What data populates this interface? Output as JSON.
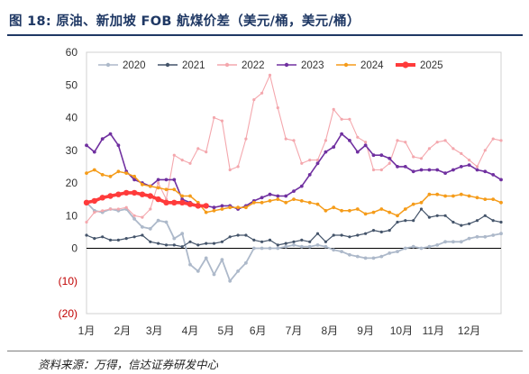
{
  "figure": {
    "title": "图 18:  原油、新加坡 FOB 航煤价差（美元/桶，美元/桶）",
    "source": "资料来源：万得，信达证券研发中心"
  },
  "chart_data": {
    "type": "line",
    "ylim": [
      -20,
      60
    ],
    "yticks": [
      {
        "v": 60,
        "label": "60"
      },
      {
        "v": 50,
        "label": "50"
      },
      {
        "v": 40,
        "label": "40"
      },
      {
        "v": 30,
        "label": "30"
      },
      {
        "v": 20,
        "label": "20"
      },
      {
        "v": 10,
        "label": "10"
      },
      {
        "v": 0,
        "label": "0"
      },
      {
        "v": -10,
        "label": "(10)"
      },
      {
        "v": -20,
        "label": "(20)"
      }
    ],
    "xlim": [
      1,
      53
    ],
    "xticks": [
      {
        "v": 1,
        "label": "1月"
      },
      {
        "v": 5.5,
        "label": "2月"
      },
      {
        "v": 9.5,
        "label": "3月"
      },
      {
        "v": 14,
        "label": "4月"
      },
      {
        "v": 18.5,
        "label": "5月"
      },
      {
        "v": 22.5,
        "label": "6月"
      },
      {
        "v": 27,
        "label": "7月"
      },
      {
        "v": 31.5,
        "label": "8月"
      },
      {
        "v": 36,
        "label": "9月"
      },
      {
        "v": 40.5,
        "label": "10月"
      },
      {
        "v": 44.5,
        "label": "11月"
      },
      {
        "v": 49,
        "label": "12月"
      }
    ],
    "legend_position": "top",
    "series": [
      {
        "name": "2020",
        "color": "#adb9ca",
        "width": 1.8,
        "marker": "circle",
        "x": [
          1,
          2,
          3,
          4,
          5,
          6,
          7,
          8,
          9,
          10,
          11,
          12,
          13,
          14,
          15,
          16,
          17,
          18,
          19,
          20,
          21,
          22,
          23,
          24,
          25,
          26,
          27,
          28,
          29,
          30,
          31,
          32,
          33,
          34,
          35,
          36,
          37,
          38,
          39,
          40,
          41,
          42,
          43,
          44,
          45,
          46,
          47,
          48,
          49,
          50,
          51,
          52,
          53
        ],
        "values": [
          14,
          11.5,
          11,
          12,
          11.5,
          12,
          9,
          6.5,
          6,
          8.5,
          8,
          3,
          4.5,
          -5,
          -7,
          -3,
          -8,
          -3.5,
          -10,
          -7,
          -4.5,
          0,
          0,
          0,
          0,
          0.5,
          1,
          0.5,
          0.5,
          1,
          0.5,
          -0.5,
          -1,
          -2,
          -2.5,
          -3,
          -3,
          -2.5,
          -1.5,
          -1,
          0,
          0.5,
          0,
          0.5,
          1,
          2,
          2,
          2,
          3,
          3.5,
          3.5,
          4,
          4.5
        ]
      },
      {
        "name": "2021",
        "color": "#44546a",
        "width": 1.2,
        "marker": "circle",
        "x": [
          1,
          2,
          3,
          4,
          5,
          6,
          7,
          8,
          9,
          10,
          11,
          12,
          13,
          14,
          15,
          16,
          17,
          18,
          19,
          20,
          21,
          22,
          23,
          24,
          25,
          26,
          27,
          28,
          29,
          30,
          31,
          32,
          33,
          34,
          35,
          36,
          37,
          38,
          39,
          40,
          41,
          42,
          43,
          44,
          45,
          46,
          47,
          48,
          49,
          50,
          51,
          52,
          53
        ],
        "values": [
          4,
          3,
          3.5,
          2.5,
          2.5,
          3,
          3.5,
          4,
          2,
          1.5,
          1,
          1,
          0.5,
          2,
          1,
          1.5,
          1.5,
          2,
          3.5,
          4,
          4,
          2.5,
          2,
          2.5,
          1,
          1.5,
          2,
          2.5,
          2,
          4.5,
          2,
          4,
          4,
          3.5,
          4,
          4.5,
          5.5,
          5,
          5.5,
          8,
          8.5,
          8.5,
          12,
          9.5,
          10,
          10,
          8,
          7,
          7.5,
          8.5,
          10,
          8.5,
          8
        ]
      },
      {
        "name": "2022",
        "color": "#f4a7ad",
        "width": 1.1,
        "marker": "circle",
        "x": [
          1,
          2,
          3,
          4,
          5,
          6,
          7,
          8,
          9,
          10,
          11,
          12,
          13,
          14,
          15,
          16,
          17,
          18,
          19,
          20,
          21,
          22,
          23,
          24,
          25,
          26,
          27,
          28,
          29,
          30,
          31,
          32,
          33,
          34,
          35,
          36,
          37,
          38,
          39,
          40,
          41,
          42,
          43,
          44,
          45,
          46,
          47,
          48,
          49,
          50,
          51,
          52,
          53
        ],
        "values": [
          8,
          11,
          11.5,
          12,
          12,
          12.5,
          10,
          9.5,
          12,
          20,
          15,
          28.5,
          27,
          26,
          30.5,
          29.5,
          40,
          39,
          24,
          25,
          33.5,
          45.5,
          47.5,
          53,
          43,
          33.5,
          33,
          26,
          27,
          27,
          33,
          42.5,
          39.5,
          39.5,
          34,
          32.5,
          24,
          24,
          26,
          33,
          32.5,
          28,
          27.5,
          30.5,
          32.5,
          33,
          30.5,
          29,
          27,
          25,
          30,
          33.5,
          33
        ]
      },
      {
        "name": "2023",
        "color": "#7030a0",
        "width": 1.6,
        "marker": "circle",
        "x": [
          1,
          2,
          3,
          4,
          5,
          6,
          7,
          8,
          9,
          10,
          11,
          12,
          13,
          14,
          15,
          16,
          17,
          18,
          19,
          20,
          21,
          22,
          23,
          24,
          25,
          26,
          27,
          28,
          29,
          30,
          31,
          32,
          33,
          34,
          35,
          36,
          37,
          38,
          39,
          40,
          41,
          42,
          43,
          44,
          45,
          46,
          47,
          48,
          49,
          50,
          51,
          52,
          53
        ],
        "values": [
          31.5,
          29.5,
          33.5,
          35,
          31.5,
          23.5,
          21,
          20,
          19,
          21,
          21,
          21,
          15,
          14,
          13,
          13,
          12.5,
          13,
          13,
          12,
          13,
          14.5,
          15.5,
          16.5,
          16,
          16,
          17.5,
          19,
          22.5,
          26,
          29.5,
          31,
          35,
          33,
          29.5,
          31.5,
          28.5,
          28.5,
          27.5,
          25,
          25,
          23.5,
          24,
          24,
          24,
          23,
          24,
          25,
          25.5,
          24,
          23.5,
          22.5,
          21
        ]
      },
      {
        "name": "2024",
        "color": "#f59c1a",
        "width": 1.5,
        "marker": "circle",
        "x": [
          1,
          2,
          3,
          4,
          5,
          6,
          7,
          8,
          9,
          10,
          11,
          12,
          13,
          14,
          15,
          16,
          17,
          18,
          19,
          20,
          21,
          22,
          23,
          24,
          25,
          26,
          27,
          28,
          29,
          30,
          31,
          32,
          33,
          34,
          35,
          36,
          37,
          38,
          39,
          40,
          41,
          42,
          43,
          44,
          45,
          46,
          47,
          48,
          49,
          50,
          51,
          52,
          53
        ],
        "values": [
          23,
          24,
          22.5,
          22,
          23.5,
          23,
          22,
          19.5,
          19,
          18.5,
          18,
          18,
          16,
          16,
          14,
          11,
          11.5,
          12,
          12.5,
          12.5,
          12.5,
          14,
          14,
          14.5,
          15,
          14,
          15,
          14.5,
          14,
          13.5,
          11.5,
          12.5,
          11.5,
          11.5,
          12,
          10.5,
          11,
          12,
          11,
          10,
          12,
          13.5,
          14,
          16.5,
          16.5,
          16,
          16,
          16.5,
          16,
          15.5,
          15,
          15,
          14
        ]
      },
      {
        "name": "2025",
        "color": "#ff3b3b",
        "width": 3.6,
        "marker": "circle",
        "x": [
          1,
          2,
          3,
          4,
          5,
          6,
          7,
          8,
          9,
          10,
          11,
          12,
          13,
          14,
          15,
          16
        ],
        "values": [
          14,
          14.5,
          15.5,
          16,
          16.5,
          17,
          17,
          16.5,
          16,
          15,
          14,
          14,
          14,
          13.5,
          13,
          13
        ]
      }
    ]
  }
}
